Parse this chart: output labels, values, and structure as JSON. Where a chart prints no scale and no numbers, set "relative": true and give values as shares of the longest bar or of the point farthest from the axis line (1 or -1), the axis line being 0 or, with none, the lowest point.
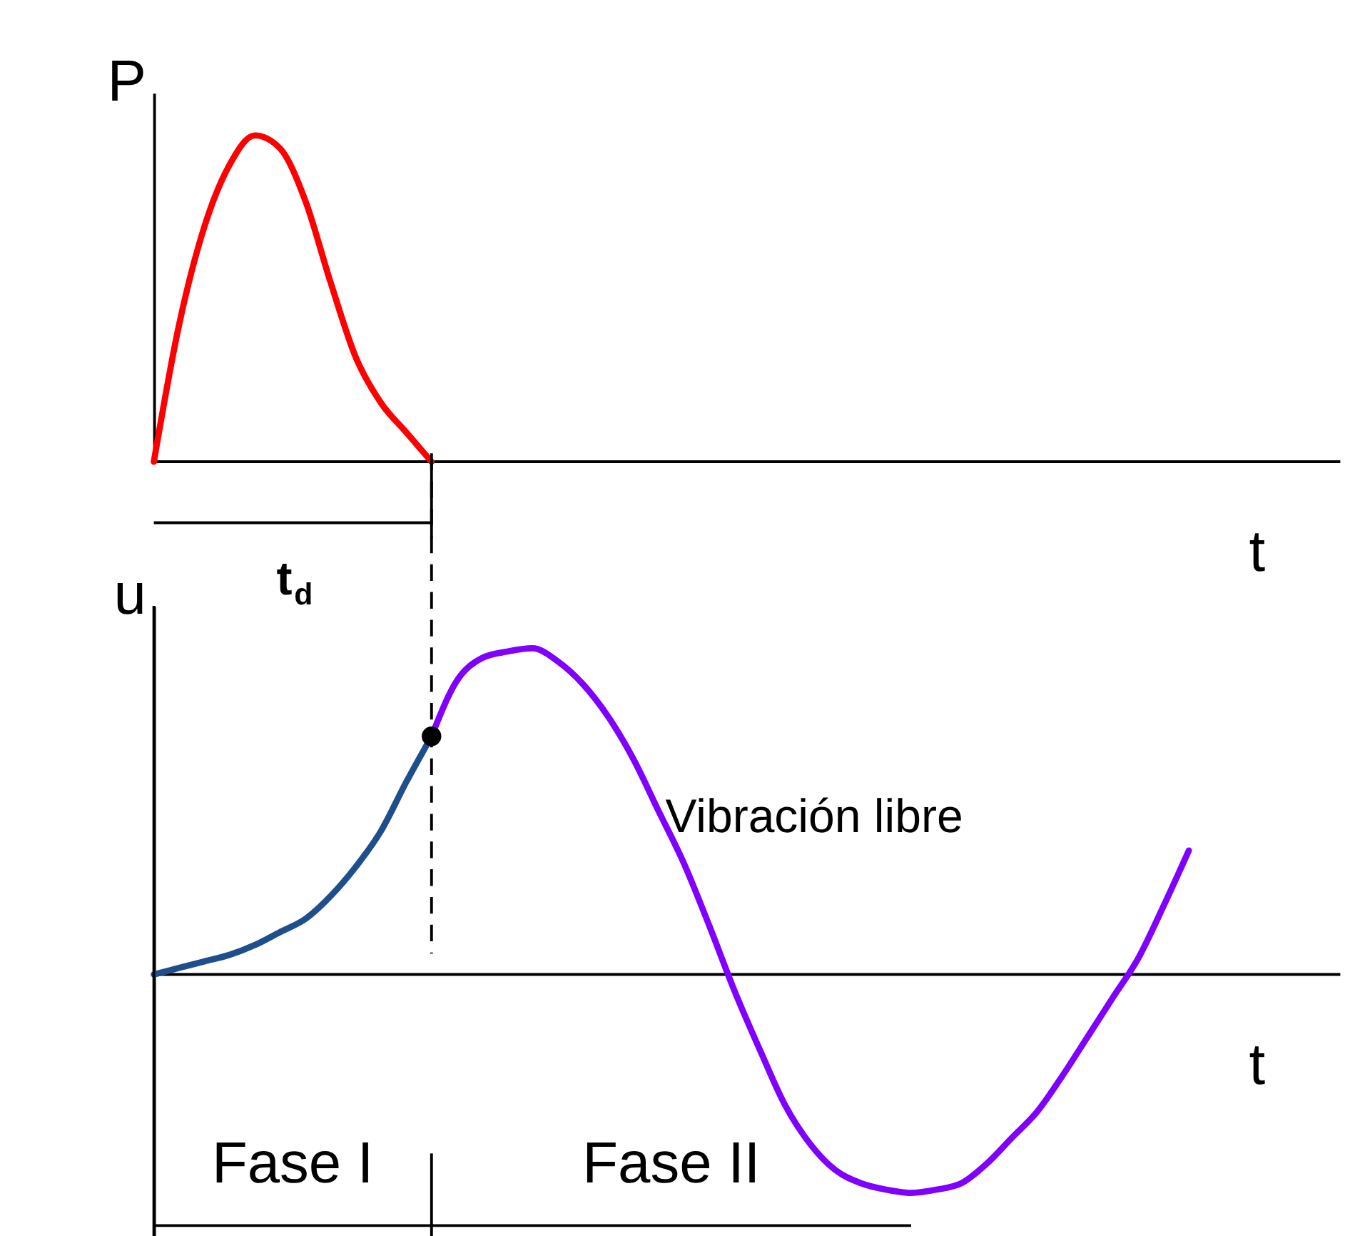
{
  "chart_data": [
    {
      "type": "line",
      "relative": true,
      "ylabel": "P",
      "xlabel": "t",
      "grid": false,
      "categories": [
        null,
        null,
        null,
        null,
        null,
        null,
        null,
        null,
        null,
        null,
        null,
        null,
        null,
        null,
        null,
        null,
        null,
        null,
        null,
        null,
        null,
        null,
        null,
        null,
        null,
        null,
        null,
        null,
        null,
        null,
        null,
        null,
        null,
        null,
        null,
        null,
        null,
        null,
        null,
        null,
        null,
        null,
        null,
        null,
        null,
        null,
        null,
        null
      ],
      "series": [
        {
          "color": "#ff0000",
          "values": [
            0,
            0.42,
            0.72,
            0.91,
            1.0,
            0.96,
            0.8,
            0.55,
            0.32,
            0.18,
            0.09,
            0,
            null,
            null,
            null,
            null,
            null,
            null,
            null,
            null,
            null,
            null,
            null,
            null,
            null,
            null,
            null,
            null,
            null,
            null,
            null,
            null,
            null,
            null,
            null,
            null,
            null,
            null,
            null,
            null,
            null,
            null,
            null,
            null,
            null,
            null,
            null,
            null
          ]
        }
      ],
      "annotations": [
        "t$_{d}$"
      ]
    },
    {
      "type": "line",
      "relative": true,
      "ylabel": "u",
      "xlabel": "t",
      "grid": false,
      "categories": [
        null,
        null,
        null,
        null,
        null,
        null,
        null,
        null,
        null,
        null,
        null,
        null,
        null,
        null,
        null,
        null,
        null,
        null,
        null,
        null,
        null,
        null,
        null,
        null,
        null,
        null,
        null,
        null,
        null,
        null,
        null,
        null,
        null,
        null,
        null,
        null,
        null,
        null,
        null,
        null,
        null,
        null,
        null,
        null,
        null,
        null,
        null,
        null
      ],
      "series": [
        {
          "color": "#1f4e8c",
          "values": [
            0,
            0.02,
            0.04,
            0.06,
            0.09,
            0.13,
            0.17,
            0.24,
            0.33,
            0.44,
            0.59,
            0.73,
            null,
            null,
            null,
            null,
            null,
            null,
            null,
            null,
            null,
            null,
            null,
            null,
            null,
            null,
            null,
            null,
            null,
            null,
            null,
            null,
            null,
            null,
            null,
            null,
            null,
            null,
            null,
            null,
            null,
            null,
            null,
            null,
            null,
            null,
            null,
            null
          ]
        },
        {
          "color": "#8000ff",
          "values": [
            null,
            null,
            null,
            null,
            null,
            null,
            null,
            null,
            null,
            null,
            null,
            0.73,
            0.9,
            0.97,
            0.99,
            1.0,
            0.96,
            0.89,
            0.79,
            0.66,
            0.5,
            0.34,
            0.15,
            -0.05,
            -0.23,
            -0.4,
            -0.52,
            -0.6,
            -0.64,
            -0.66,
            -0.67,
            -0.66,
            -0.64,
            -0.58,
            -0.5,
            -0.42,
            -0.31,
            -0.19,
            -0.07,
            0.05,
            0.21,
            0.38,
            null,
            null,
            null,
            null,
            null,
            null
          ]
        },
        {
          "type": "scatter",
          "color": "#000000",
          "values": [
            null,
            null,
            null,
            null,
            null,
            null,
            null,
            null,
            null,
            null,
            null,
            0.73,
            null,
            null,
            null,
            null,
            null,
            null,
            null,
            null,
            null,
            null,
            null,
            null,
            null,
            null,
            null,
            null,
            null,
            null,
            null,
            null,
            null,
            null,
            null,
            null,
            null,
            null,
            null,
            null,
            null,
            null,
            null,
            null,
            null,
            null,
            null,
            null
          ]
        }
      ],
      "ref_lines": [
        {
          "axis": "x",
          "line_style": "dashed",
          "color": "#000000"
        }
      ],
      "annotations": [
        "Vibración libre",
        "Fase I",
        "Fase II"
      ]
    }
  ]
}
